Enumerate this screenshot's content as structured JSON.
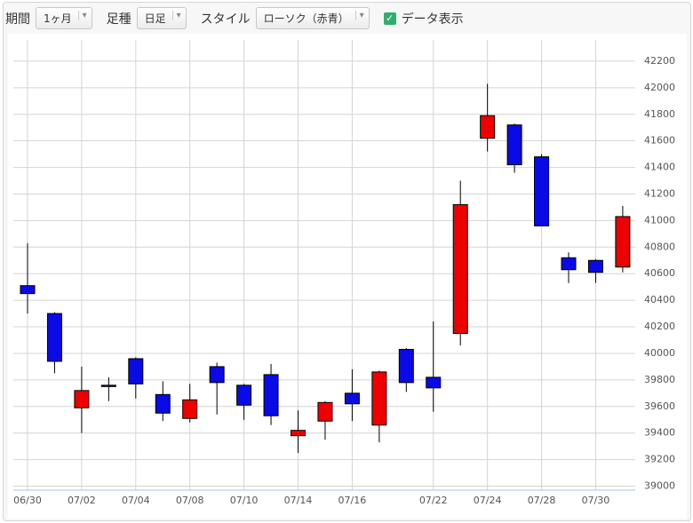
{
  "toolbar": {
    "period_label": "期間",
    "period_value": "1ヶ月",
    "bar_label": "足種",
    "bar_value": "日足",
    "style_label": "スタイル",
    "style_value": "ローソク（赤青）",
    "data_toggle": "データ表示"
  },
  "chart_data": {
    "type": "candlestick",
    "categories": [
      "06/30",
      null,
      "07/02",
      null,
      "07/04",
      null,
      "07/08",
      null,
      "07/10",
      null,
      "07/14",
      null,
      "07/16",
      null,
      null,
      "07/22",
      null,
      "07/24",
      null,
      "07/28",
      null,
      "07/30",
      null
    ],
    "open": [
      40510,
      40300,
      39590,
      39760,
      39960,
      39690,
      39510,
      39900,
      39760,
      39840,
      39380,
      39490,
      39700,
      39460,
      40030,
      39820,
      40150,
      41620,
      41720,
      41480,
      40720,
      40700,
      40650
    ],
    "high": [
      40830,
      40310,
      39900,
      39820,
      39970,
      39790,
      39770,
      39930,
      39770,
      39920,
      39570,
      39640,
      39880,
      39870,
      40040,
      40240,
      41300,
      42030,
      41730,
      41500,
      40760,
      40710,
      41110
    ],
    "low": [
      40300,
      39850,
      39400,
      39640,
      39660,
      39490,
      39480,
      39540,
      39500,
      39460,
      39250,
      39350,
      39490,
      39330,
      39710,
      39560,
      40060,
      41520,
      41360,
      40960,
      40530,
      40530,
      40610
    ],
    "close": [
      40450,
      39940,
      39720,
      39750,
      39770,
      39550,
      39650,
      39780,
      39610,
      39530,
      39420,
      39630,
      39620,
      39860,
      39780,
      39740,
      41120,
      41790,
      41420,
      40960,
      40630,
      40610,
      41030
    ],
    "up_color": "#ee0000",
    "down_color": "#0a0ae6",
    "ylim": [
      38970,
      42360
    ],
    "yticks": [
      39000,
      39200,
      39400,
      39600,
      39800,
      40000,
      40200,
      40400,
      40600,
      40800,
      41000,
      41200,
      41400,
      41600,
      41800,
      42000,
      42200
    ],
    "grid": true
  }
}
